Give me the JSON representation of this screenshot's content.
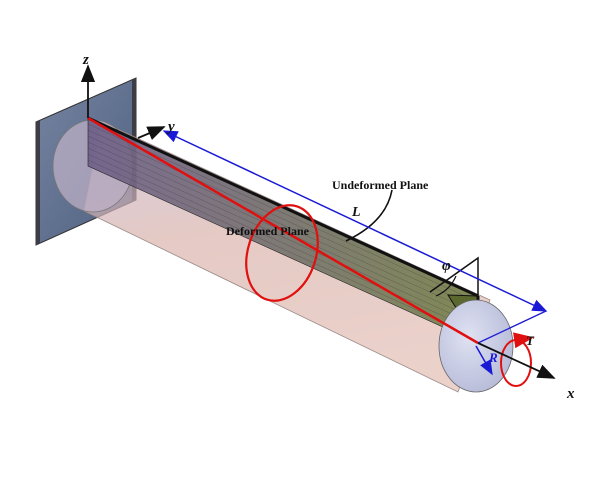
{
  "labels": {
    "z_axis": "z",
    "y_axis": "y",
    "x_axis": "x",
    "length": "L",
    "undeformed_plane": "Undeformed Plane",
    "deformed_plane": "Deformed Plane",
    "angle": "φ",
    "radius": "R",
    "torque": "T"
  },
  "colors": {
    "cylinder_fill": "#d9b3ad",
    "end_face": "#c9cde6",
    "wall": "#5f6f8e",
    "plane_green": "#6f7d40",
    "plane_purple": "#6b5a85",
    "red": "#e01010",
    "blue": "#1a1ad6",
    "black": "#111111"
  }
}
